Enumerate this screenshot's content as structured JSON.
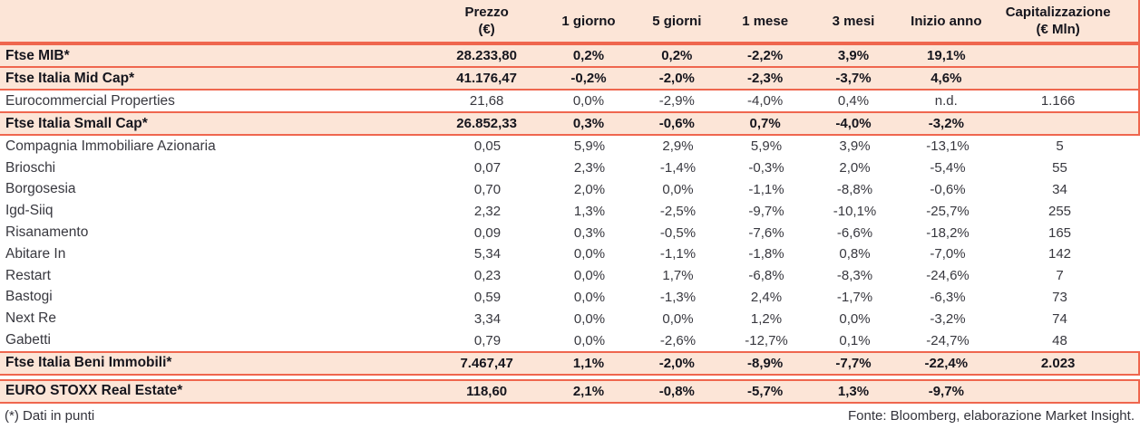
{
  "colors": {
    "line_accent": "#ef664e",
    "row_highlight": "#fce5d7",
    "text_primary": "#15151d"
  },
  "table": {
    "columns": [
      {
        "label": "Prezzo",
        "sub": "(€)"
      },
      {
        "label": "1 giorno",
        "sub": ""
      },
      {
        "label": "5 giorni",
        "sub": ""
      },
      {
        "label": "1 mese",
        "sub": ""
      },
      {
        "label": "3 mesi",
        "sub": ""
      },
      {
        "label": "Inizio anno",
        "sub": ""
      },
      {
        "label": "Capitalizzazione",
        "sub": "(€ Mln)"
      }
    ],
    "sections": [
      {
        "boxed": true,
        "rows": [
          {
            "name": "Ftse MIB*",
            "emphasis": true,
            "values": [
              "28.233,80",
              "0,2%",
              "0,2%",
              "-2,2%",
              "3,9%",
              "19,1%",
              ""
            ]
          },
          {
            "name": "Ftse Italia Mid Cap*",
            "emphasis": true,
            "values": [
              "41.176,47",
              "-0,2%",
              "-2,0%",
              "-2,3%",
              "-3,7%",
              "4,6%",
              ""
            ]
          },
          {
            "name": "Eurocommercial Properties",
            "emphasis": false,
            "values": [
              "21,68",
              "0,0%",
              "-2,9%",
              "-4,0%",
              "0,4%",
              "n.d.",
              "1.166"
            ]
          },
          {
            "name": "Ftse Italia Small Cap*",
            "emphasis": true,
            "values": [
              "26.852,33",
              "0,3%",
              "-0,6%",
              "0,7%",
              "-4,0%",
              "-3,2%",
              ""
            ]
          }
        ]
      },
      {
        "boxed": false,
        "rows": [
          {
            "name": "Compagnia Immobiliare Azionaria",
            "emphasis": false,
            "values": [
              "0,05",
              "5,9%",
              "2,9%",
              "5,9%",
              "3,9%",
              "-13,1%",
              "5"
            ]
          },
          {
            "name": "Brioschi",
            "emphasis": false,
            "values": [
              "0,07",
              "2,3%",
              "-1,4%",
              "-0,3%",
              "2,0%",
              "-5,4%",
              "55"
            ]
          },
          {
            "name": "Borgosesia",
            "emphasis": false,
            "values": [
              "0,70",
              "2,0%",
              "0,0%",
              "-1,1%",
              "-8,8%",
              "-0,6%",
              "34"
            ]
          },
          {
            "name": "Igd-Siiq",
            "emphasis": false,
            "values": [
              "2,32",
              "1,3%",
              "-2,5%",
              "-9,7%",
              "-10,1%",
              "-25,7%",
              "255"
            ]
          },
          {
            "name": "Risanamento",
            "emphasis": false,
            "values": [
              "0,09",
              "0,3%",
              "-0,5%",
              "-7,6%",
              "-6,6%",
              "-18,2%",
              "165"
            ]
          },
          {
            "name": "Abitare In",
            "emphasis": false,
            "values": [
              "5,34",
              "0,0%",
              "-1,1%",
              "-1,8%",
              "0,8%",
              "-7,0%",
              "142"
            ]
          },
          {
            "name": "Restart",
            "emphasis": false,
            "values": [
              "0,23",
              "0,0%",
              "1,7%",
              "-6,8%",
              "-8,3%",
              "-24,6%",
              "7"
            ]
          },
          {
            "name": "Bastogi",
            "emphasis": false,
            "values": [
              "0,59",
              "0,0%",
              "-1,3%",
              "2,4%",
              "-1,7%",
              "-6,3%",
              "73"
            ]
          },
          {
            "name": "Next Re",
            "emphasis": false,
            "values": [
              "3,34",
              "0,0%",
              "0,0%",
              "1,2%",
              "0,0%",
              "-3,2%",
              "74"
            ]
          },
          {
            "name": "Gabetti",
            "emphasis": false,
            "values": [
              "0,79",
              "0,0%",
              "-2,6%",
              "-12,7%",
              "0,1%",
              "-24,7%",
              "48"
            ]
          }
        ]
      },
      {
        "boxed": true,
        "rows": [
          {
            "name": "Ftse Italia Beni Immobili*",
            "emphasis": true,
            "values": [
              "7.467,47",
              "1,1%",
              "-2,0%",
              "-8,9%",
              "-7,7%",
              "-22,4%",
              "2.023"
            ]
          }
        ]
      },
      {
        "boxed": true,
        "rows": [
          {
            "name": "EURO STOXX Real Estate*",
            "emphasis": true,
            "values": [
              "118,60",
              "2,1%",
              "-0,8%",
              "-5,7%",
              "1,3%",
              "-9,7%",
              ""
            ]
          }
        ]
      }
    ]
  },
  "footer": {
    "note": "(*) Dati in punti",
    "source": "Fonte: Bloomberg, elaborazione Market Insight."
  }
}
